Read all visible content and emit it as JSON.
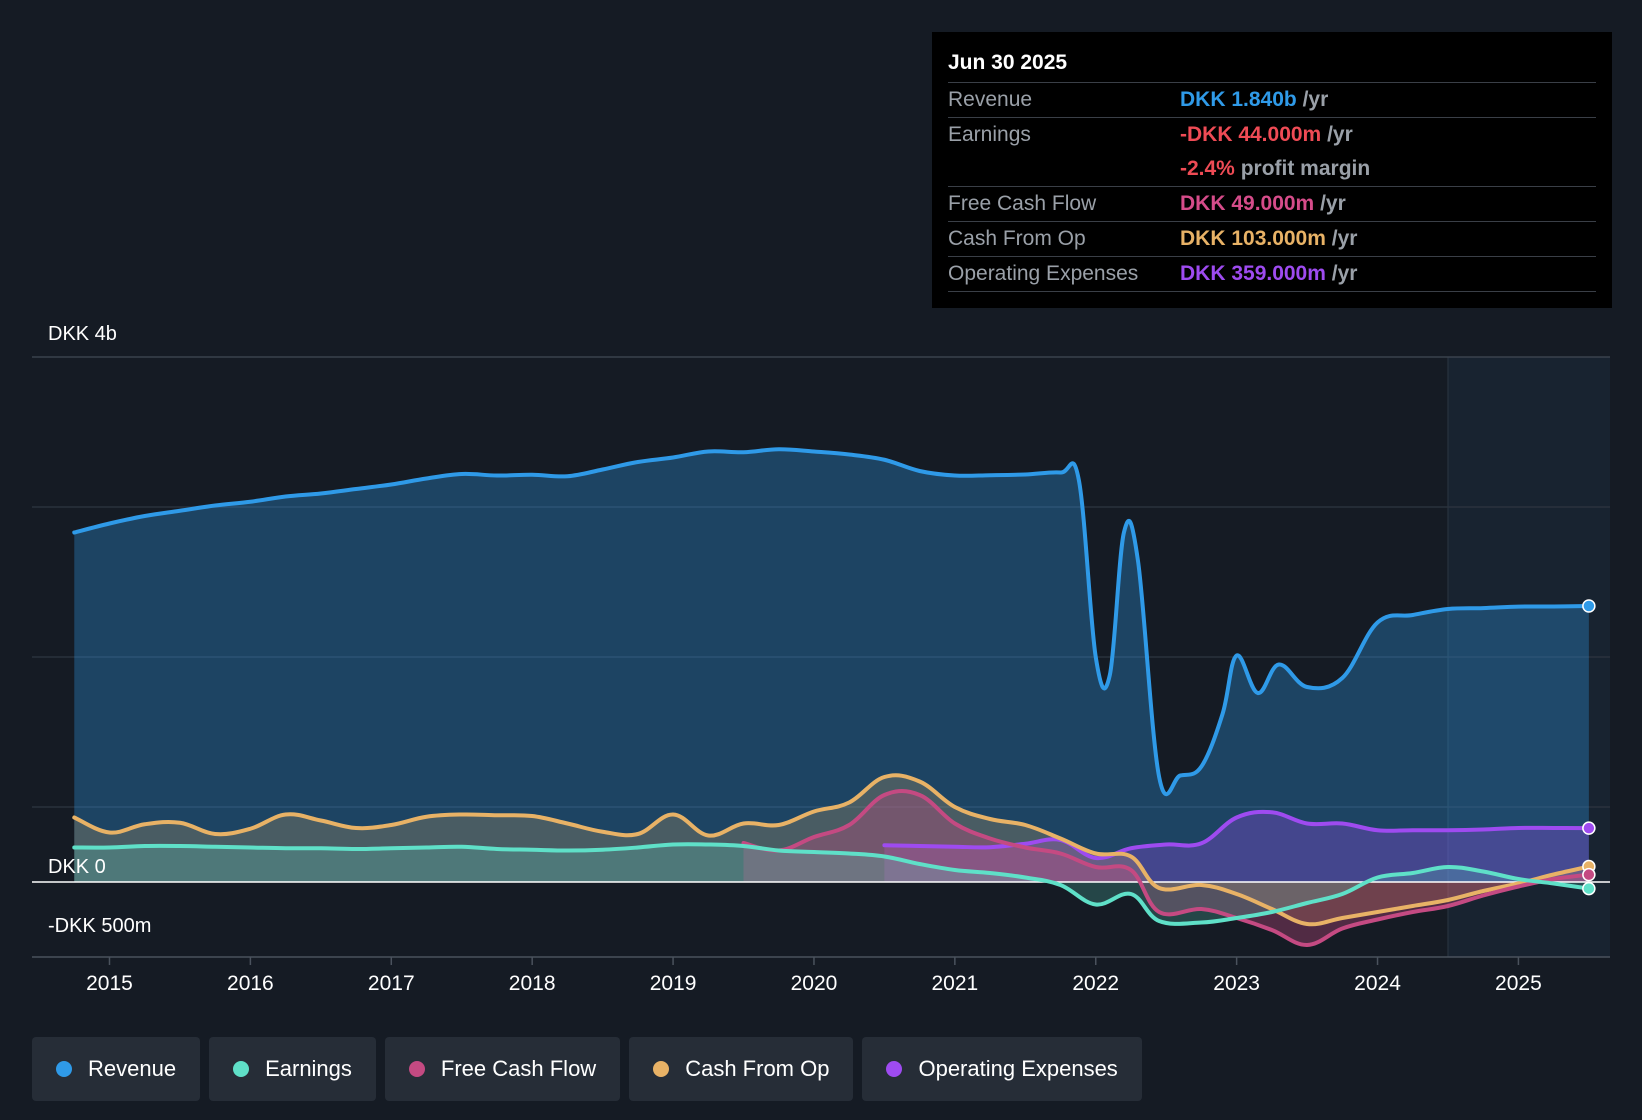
{
  "tooltip": {
    "date": "Jun 30 2025",
    "rows": [
      {
        "label": "Revenue",
        "value": "DKK 1.840b",
        "unit": "/yr",
        "color": "#2f9ae8"
      },
      {
        "label": "Earnings",
        "value": "-DKK 44.000m",
        "unit": "/yr",
        "color": "#ef4b55",
        "value2": "-2.4%",
        "unit2": "profit margin"
      },
      {
        "label": "Free Cash Flow",
        "value": "DKK 49.000m",
        "unit": "/yr",
        "color": "#d64c8a"
      },
      {
        "label": "Cash From Op",
        "value": "DKK 103.000m",
        "unit": "/yr",
        "color": "#e8b266"
      },
      {
        "label": "Operating Expenses",
        "value": "DKK 359.000m",
        "unit": "/yr",
        "color": "#9e4bf0"
      }
    ]
  },
  "legend": [
    {
      "label": "Revenue",
      "color": "#2f9ae8"
    },
    {
      "label": "Earnings",
      "color": "#5fe0c8"
    },
    {
      "label": "Free Cash Flow",
      "color": "#c44a82"
    },
    {
      "label": "Cash From Op",
      "color": "#e8b266"
    },
    {
      "label": "Operating Expenses",
      "color": "#9e4bf0"
    }
  ],
  "chart_data": {
    "type": "line",
    "y_axis_labels": [
      "DKK 4b",
      "DKK 0",
      "-DKK 500m"
    ],
    "ylim": [
      -500,
      3500
    ],
    "xlim": [
      2014.45,
      2025.65
    ],
    "x_tick_labels": [
      "2015",
      "2016",
      "2017",
      "2018",
      "2019",
      "2020",
      "2021",
      "2022",
      "2023",
      "2024",
      "2025"
    ],
    "x_ticks": [
      2015,
      2016,
      2017,
      2018,
      2019,
      2020,
      2021,
      2022,
      2023,
      2024,
      2025
    ],
    "forecast_shade_start": 2024.5,
    "colors": {
      "revenue": "#2f9ae8",
      "earnings": "#5fe0c8",
      "fcf": "#c44a82",
      "cfo": "#e8b266",
      "opex": "#9e4bf0"
    },
    "series": [
      {
        "key": "revenue",
        "name": "Revenue",
        "points": [
          [
            2014.75,
            2330
          ],
          [
            2015.0,
            2390
          ],
          [
            2015.25,
            2440
          ],
          [
            2015.5,
            2475
          ],
          [
            2015.75,
            2510
          ],
          [
            2016.0,
            2535
          ],
          [
            2016.25,
            2570
          ],
          [
            2016.5,
            2590
          ],
          [
            2016.75,
            2620
          ],
          [
            2017.0,
            2650
          ],
          [
            2017.25,
            2690
          ],
          [
            2017.5,
            2720
          ],
          [
            2017.75,
            2710
          ],
          [
            2018.0,
            2715
          ],
          [
            2018.25,
            2705
          ],
          [
            2018.5,
            2750
          ],
          [
            2018.75,
            2800
          ],
          [
            2019.0,
            2830
          ],
          [
            2019.25,
            2870
          ],
          [
            2019.5,
            2865
          ],
          [
            2019.75,
            2885
          ],
          [
            2020.0,
            2870
          ],
          [
            2020.25,
            2850
          ],
          [
            2020.5,
            2815
          ],
          [
            2020.75,
            2740
          ],
          [
            2021.0,
            2710
          ],
          [
            2021.25,
            2712
          ],
          [
            2021.5,
            2717
          ],
          [
            2021.75,
            2730
          ],
          [
            2021.88,
            2680
          ],
          [
            2022.0,
            1500
          ],
          [
            2022.1,
            1380
          ],
          [
            2022.2,
            2330
          ],
          [
            2022.3,
            2140
          ],
          [
            2022.45,
            700
          ],
          [
            2022.6,
            710
          ],
          [
            2022.75,
            770
          ],
          [
            2022.9,
            1120
          ],
          [
            2023.0,
            1510
          ],
          [
            2023.15,
            1260
          ],
          [
            2023.3,
            1450
          ],
          [
            2023.5,
            1300
          ],
          [
            2023.75,
            1360
          ],
          [
            2024.0,
            1730
          ],
          [
            2024.25,
            1780
          ],
          [
            2024.5,
            1820
          ],
          [
            2024.75,
            1826
          ],
          [
            2025.0,
            1836
          ],
          [
            2025.25,
            1837
          ],
          [
            2025.5,
            1840
          ]
        ]
      },
      {
        "key": "opex",
        "name": "Operating Expenses",
        "points": [
          [
            2020.5,
            245
          ],
          [
            2020.75,
            240
          ],
          [
            2021.0,
            235
          ],
          [
            2021.25,
            232
          ],
          [
            2021.5,
            255
          ],
          [
            2021.75,
            280
          ],
          [
            2022.0,
            160
          ],
          [
            2022.25,
            225
          ],
          [
            2022.5,
            250
          ],
          [
            2022.75,
            258
          ],
          [
            2023.0,
            430
          ],
          [
            2023.25,
            465
          ],
          [
            2023.5,
            390
          ],
          [
            2023.75,
            390
          ],
          [
            2024.0,
            345
          ],
          [
            2024.25,
            345
          ],
          [
            2024.5,
            345
          ],
          [
            2024.75,
            350
          ],
          [
            2025.0,
            360
          ],
          [
            2025.25,
            360
          ],
          [
            2025.5,
            359
          ]
        ]
      },
      {
        "key": "cfo",
        "name": "Cash From Op",
        "points": [
          [
            2014.75,
            430
          ],
          [
            2015.0,
            330
          ],
          [
            2015.25,
            385
          ],
          [
            2015.5,
            395
          ],
          [
            2015.75,
            320
          ],
          [
            2016.0,
            355
          ],
          [
            2016.25,
            450
          ],
          [
            2016.5,
            410
          ],
          [
            2016.75,
            360
          ],
          [
            2017.0,
            380
          ],
          [
            2017.25,
            435
          ],
          [
            2017.5,
            450
          ],
          [
            2017.75,
            445
          ],
          [
            2018.0,
            440
          ],
          [
            2018.25,
            390
          ],
          [
            2018.5,
            335
          ],
          [
            2018.75,
            320
          ],
          [
            2019.0,
            450
          ],
          [
            2019.25,
            310
          ],
          [
            2019.5,
            390
          ],
          [
            2019.75,
            380
          ],
          [
            2020.0,
            470
          ],
          [
            2020.25,
            530
          ],
          [
            2020.5,
            700
          ],
          [
            2020.75,
            670
          ],
          [
            2021.0,
            500
          ],
          [
            2021.25,
            420
          ],
          [
            2021.5,
            380
          ],
          [
            2021.75,
            290
          ],
          [
            2022.0,
            190
          ],
          [
            2022.25,
            170
          ],
          [
            2022.45,
            -40
          ],
          [
            2022.75,
            -20
          ],
          [
            2023.0,
            -80
          ],
          [
            2023.25,
            -180
          ],
          [
            2023.5,
            -280
          ],
          [
            2023.75,
            -240
          ],
          [
            2024.0,
            -200
          ],
          [
            2024.25,
            -160
          ],
          [
            2024.5,
            -120
          ],
          [
            2024.75,
            -60
          ],
          [
            2025.0,
            -10
          ],
          [
            2025.25,
            50
          ],
          [
            2025.5,
            103
          ]
        ]
      },
      {
        "key": "fcf",
        "name": "Free Cash Flow",
        "points": [
          [
            2019.5,
            260
          ],
          [
            2019.75,
            210
          ],
          [
            2020.0,
            300
          ],
          [
            2020.25,
            380
          ],
          [
            2020.5,
            580
          ],
          [
            2020.75,
            580
          ],
          [
            2021.0,
            390
          ],
          [
            2021.25,
            290
          ],
          [
            2021.5,
            230
          ],
          [
            2021.75,
            190
          ],
          [
            2022.0,
            100
          ],
          [
            2022.25,
            80
          ],
          [
            2022.45,
            -200
          ],
          [
            2022.75,
            -180
          ],
          [
            2023.0,
            -240
          ],
          [
            2023.25,
            -320
          ],
          [
            2023.5,
            -420
          ],
          [
            2023.75,
            -310
          ],
          [
            2024.0,
            -250
          ],
          [
            2024.25,
            -200
          ],
          [
            2024.5,
            -160
          ],
          [
            2024.75,
            -90
          ],
          [
            2025.0,
            -30
          ],
          [
            2025.25,
            20
          ],
          [
            2025.5,
            49
          ]
        ]
      },
      {
        "key": "earnings",
        "name": "Earnings",
        "points": [
          [
            2014.75,
            230
          ],
          [
            2015.0,
            230
          ],
          [
            2015.25,
            240
          ],
          [
            2015.5,
            240
          ],
          [
            2015.75,
            235
          ],
          [
            2016.0,
            230
          ],
          [
            2016.25,
            225
          ],
          [
            2016.5,
            225
          ],
          [
            2016.75,
            220
          ],
          [
            2017.0,
            225
          ],
          [
            2017.25,
            230
          ],
          [
            2017.5,
            235
          ],
          [
            2017.75,
            220
          ],
          [
            2018.0,
            215
          ],
          [
            2018.25,
            210
          ],
          [
            2018.5,
            215
          ],
          [
            2018.75,
            230
          ],
          [
            2019.0,
            250
          ],
          [
            2019.25,
            250
          ],
          [
            2019.5,
            240
          ],
          [
            2019.75,
            210
          ],
          [
            2020.0,
            200
          ],
          [
            2020.25,
            190
          ],
          [
            2020.5,
            170
          ],
          [
            2020.75,
            120
          ],
          [
            2021.0,
            80
          ],
          [
            2021.25,
            60
          ],
          [
            2021.5,
            30
          ],
          [
            2021.75,
            -20
          ],
          [
            2022.0,
            -150
          ],
          [
            2022.25,
            -80
          ],
          [
            2022.45,
            -260
          ],
          [
            2022.75,
            -270
          ],
          [
            2023.0,
            -240
          ],
          [
            2023.25,
            -200
          ],
          [
            2023.5,
            -140
          ],
          [
            2023.75,
            -80
          ],
          [
            2024.0,
            30
          ],
          [
            2024.25,
            60
          ],
          [
            2024.5,
            100
          ],
          [
            2024.75,
            70
          ],
          [
            2025.0,
            20
          ],
          [
            2025.25,
            -10
          ],
          [
            2025.5,
            -44
          ]
        ]
      }
    ]
  }
}
